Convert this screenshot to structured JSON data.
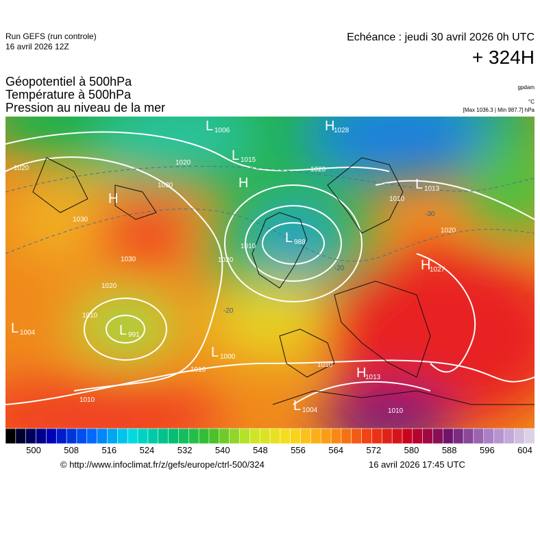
{
  "header": {
    "run": "Run GEFS (run controle)",
    "run_date": "16 avril 2026 12Z",
    "echeance": "Echéance : jeudi 30 avril 2026 0h UTC",
    "horizon": "+ 324H",
    "fields": [
      "Géopotentiel à 500hPa",
      "Température à 500hPa",
      "Pression au niveau de la mer"
    ],
    "units": [
      "gpdam",
      "°C",
      "[Max 1036.3 | Min 987.7] hPa"
    ]
  },
  "map": {
    "centers": [
      {
        "letter": "L",
        "value": "1006"
      },
      {
        "letter": "H",
        "value": "1028"
      },
      {
        "letter": "L",
        "value": "1015"
      },
      {
        "letter": "H",
        "value": ""
      },
      {
        "letter": "L",
        "value": "1013"
      },
      {
        "letter": "H",
        "value": ""
      },
      {
        "letter": "L",
        "value": "988"
      },
      {
        "letter": "H",
        "value": "1027"
      },
      {
        "letter": "L",
        "value": "1004"
      },
      {
        "letter": "L",
        "value": "991"
      },
      {
        "letter": "L",
        "value": "1000"
      },
      {
        "letter": "H",
        "value": "1013"
      },
      {
        "letter": "L",
        "value": "1004"
      }
    ],
    "isobar_labels": [
      "1020",
      "1030",
      "1030",
      "1030",
      "1020",
      "1010",
      "1010",
      "1010",
      "1020",
      "1020",
      "1010",
      "1020",
      "1010",
      "1020",
      "1010",
      "1010"
    ],
    "isotherm_labels": [
      "-30",
      "-20",
      "-20"
    ]
  },
  "colorbar": {
    "ticks": [
      "500",
      "508",
      "516",
      "524",
      "532",
      "540",
      "548",
      "556",
      "564",
      "572",
      "580",
      "588",
      "596",
      "604"
    ]
  },
  "footer": {
    "source": "© http://www.infoclimat.fr/z/gefs/europe/ctrl-500/324",
    "issued": "16 avril 2026 17:45 UTC"
  }
}
